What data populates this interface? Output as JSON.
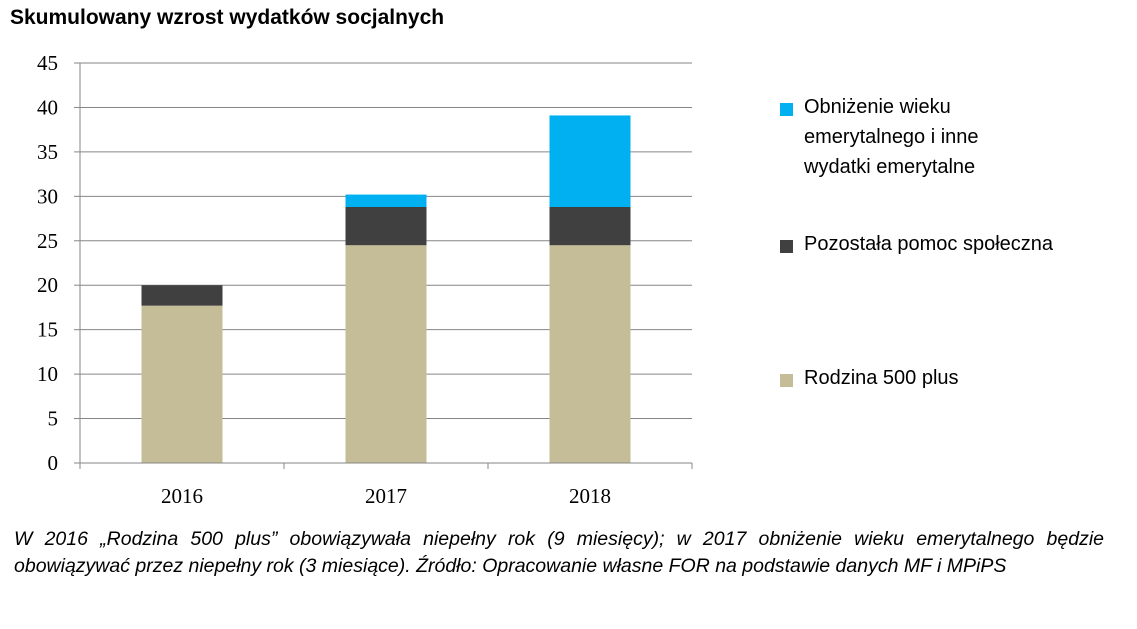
{
  "chart_data": {
    "type": "bar",
    "stacked": true,
    "title": "Skumulowany wzrost wydatków socjalnych",
    "categories": [
      "2016",
      "2017",
      "2018"
    ],
    "series": [
      {
        "name": "Rodzina 500 plus",
        "color": "#c4bd97",
        "values": [
          17.7,
          24.5,
          24.5
        ]
      },
      {
        "name": "Pozostała pomoc społeczna",
        "color": "#404040",
        "values": [
          2.3,
          4.3,
          4.3
        ]
      },
      {
        "name": "Obniżenie wieku emerytalnego i inne wydatki emerytalne",
        "color": "#00b0f0",
        "values": [
          0,
          1.4,
          10.3
        ]
      }
    ],
    "ylim": [
      0,
      45
    ],
    "yticks": [
      0,
      5,
      10,
      15,
      20,
      25,
      30,
      35,
      40,
      45
    ],
    "ytick_labels": [
      "0",
      "5",
      "10",
      "15",
      "20",
      "25",
      "30",
      "35",
      "40",
      "45"
    ],
    "grid": true,
    "legend_position": "right"
  },
  "legend": {
    "items": [
      {
        "lines": [
          "Obniżenie wieku",
          "emerytalnego i inne",
          "wydatki emerytalne"
        ],
        "color": "#00b0f0"
      },
      {
        "lines": [
          "Pozostała pomoc społeczna"
        ],
        "color": "#404040"
      },
      {
        "lines": [
          "Rodzina 500 plus"
        ],
        "color": "#c4bd97"
      }
    ]
  },
  "caption": "W 2016 „Rodzina 500 plus” obowiązywała niepełny rok (9 miesięcy); w 2017 obniżenie wieku emerytalnego będzie obowiązywać przez niepełny rok (3 miesiące). Źródło: Opracowanie własne FOR na podstawie danych MF i MPiPS"
}
